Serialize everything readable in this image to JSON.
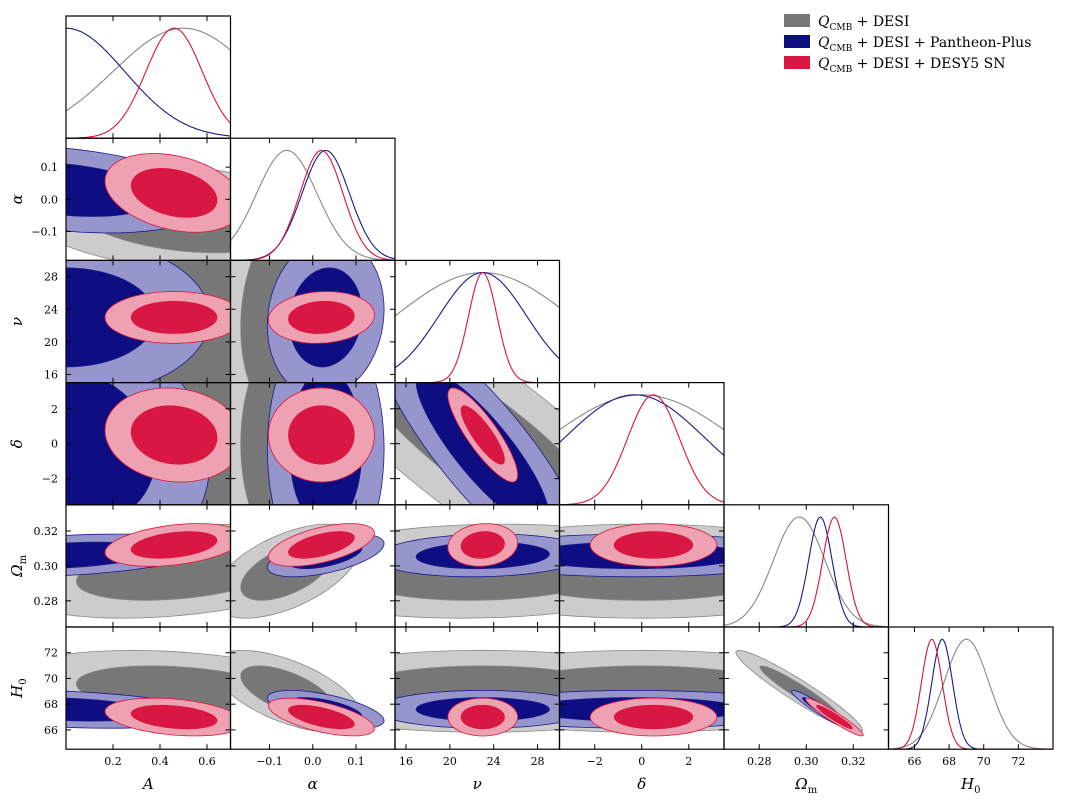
{
  "chart_data": {
    "type": "triangle-corner",
    "parameters": [
      {
        "name": "A",
        "label": "A",
        "range": [
          0.0,
          0.7
        ],
        "ticks": [
          0.2,
          0.4,
          0.6
        ],
        "tick_labels": [
          "0.2",
          "0.4",
          "0.6"
        ]
      },
      {
        "name": "alpha",
        "label": "α",
        "range": [
          -0.19,
          0.19
        ],
        "ticks": [
          -0.1,
          0.0,
          0.1
        ],
        "tick_labels": [
          "−0.1",
          "0.0",
          "0.1"
        ]
      },
      {
        "name": "nu",
        "label": "ν",
        "range": [
          15.0,
          30.0
        ],
        "ticks": [
          16,
          20,
          24,
          28
        ],
        "tick_labels": [
          "16",
          "20",
          "24",
          "28"
        ]
      },
      {
        "name": "delta",
        "label": "δ",
        "range": [
          -3.5,
          3.5
        ],
        "ticks": [
          -2,
          0,
          2
        ],
        "tick_labels": [
          "−2",
          "0",
          "2"
        ]
      },
      {
        "name": "Omega_m",
        "label": "Ωm",
        "range": [
          0.265,
          0.335
        ],
        "ticks": [
          0.28,
          0.3,
          0.32
        ],
        "tick_labels": [
          "0.28",
          "0.30",
          "0.32"
        ]
      },
      {
        "name": "H0",
        "label": "H0",
        "range": [
          64.5,
          74.0
        ],
        "ticks": [
          66,
          68,
          70,
          72
        ],
        "tick_labels": [
          "66",
          "68",
          "70",
          "72"
        ]
      }
    ],
    "series": [
      {
        "id": "qcmb-desi",
        "name": "QCMB + DESI",
        "color_inner": "#777777",
        "color_outer": "#cccccc",
        "line": "#888888",
        "means": {
          "A": 0.5,
          "alpha": -0.06,
          "nu": 23,
          "delta": 0.0,
          "Omega_m": 0.297,
          "H0": 69.0
        },
        "sigmas": {
          "A": 0.3,
          "alpha": 0.07,
          "nu": 8,
          "delta": 4.0,
          "Omega_m": 0.011,
          "H0": 1.3
        }
      },
      {
        "id": "qcmb-desi-pantheon",
        "name": "QCMB + DESI + Pantheon-Plus",
        "color_inner": "#0e0e82",
        "color_outer": "#9696cc",
        "line": "#1a1a8c",
        "means": {
          "A": 0.0,
          "alpha": 0.03,
          "nu": 23,
          "delta": -0.3,
          "Omega_m": 0.306,
          "H0": 67.6
        },
        "sigmas": {
          "A": 0.25,
          "alpha": 0.055,
          "nu": 4,
          "delta": 3.0,
          "Omega_m": 0.005,
          "H0": 0.6
        }
      },
      {
        "id": "qcmb-desi-desy5",
        "name": "QCMB + DESI + DESY5 SN",
        "color_inner": "#d81842",
        "color_outer": "#eea1b1",
        "line": "#dc143c",
        "means": {
          "A": 0.46,
          "alpha": 0.02,
          "nu": 23,
          "delta": 0.5,
          "Omega_m": 0.312,
          "H0": 67.0
        },
        "sigmas": {
          "A": 0.12,
          "alpha": 0.05,
          "nu": 1.3,
          "delta": 1.1,
          "Omega_m": 0.005,
          "H0": 0.6
        }
      }
    ],
    "legend": {
      "placement": "top-right",
      "entries": [
        {
          "prefix": "Q",
          "sub": "CMB",
          "suffix": " + DESI",
          "series": "qcmb-desi"
        },
        {
          "prefix": "Q",
          "sub": "CMB",
          "suffix": " + DESI + Pantheon-Plus",
          "series": "qcmb-desi-pantheon"
        },
        {
          "prefix": "Q",
          "sub": "CMB",
          "suffix": " + DESI + DESY5 SN",
          "series": "qcmb-desi-desy5"
        }
      ]
    },
    "axis_labels": {
      "A": {
        "main": "A",
        "sub": ""
      },
      "alpha": {
        "main": "α",
        "sub": ""
      },
      "nu": {
        "main": "ν",
        "sub": ""
      },
      "delta": {
        "main": "δ",
        "sub": ""
      },
      "Omega_m": {
        "main": "Ω",
        "sub": "m"
      },
      "H0": {
        "main": "H",
        "sub": "0"
      }
    }
  }
}
